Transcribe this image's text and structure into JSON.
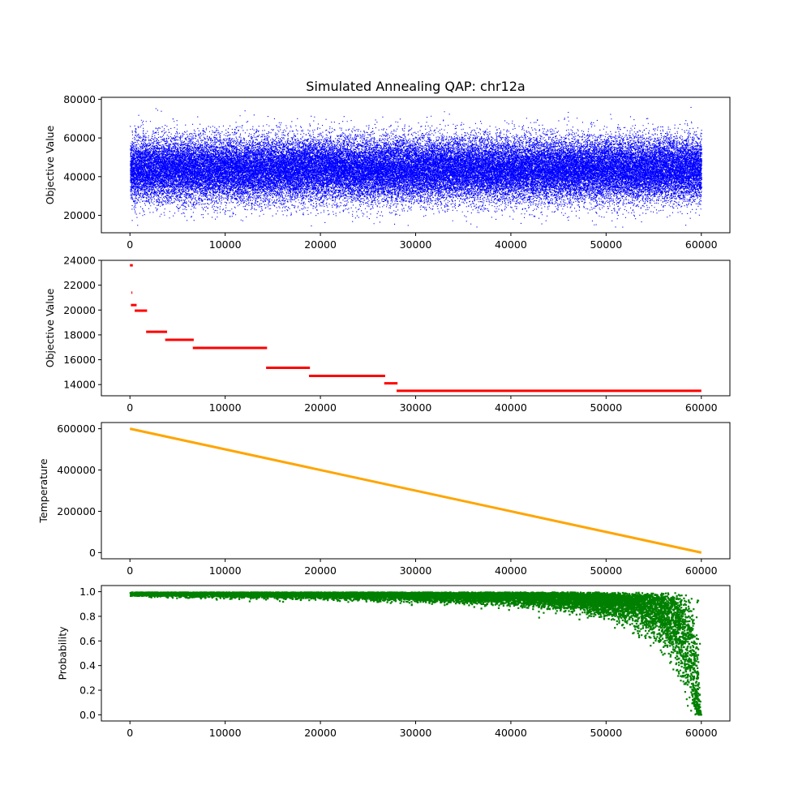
{
  "chart_data": [
    {
      "type": "scatter",
      "title": "Simulated Annealing QAP: chr12a",
      "ylabel": "Objective Value",
      "xlabel": "",
      "xlim": [
        -3000,
        63000
      ],
      "ylim": [
        11000,
        81000
      ],
      "x_ticks": [
        0,
        10000,
        20000,
        30000,
        40000,
        50000,
        60000
      ],
      "y_ticks": [
        20000,
        40000,
        60000,
        80000
      ],
      "color": "#0000ff",
      "description_of_data": "about 60000 points, one per iteration; values spread roughly uniformly between ~20000 and ~65000 with a dense core around 35000-55000",
      "generator": {
        "n": 60000,
        "x_min": 0,
        "x_max": 60000,
        "y_center": 44000,
        "y_spread": 8000,
        "y_floor": 14000,
        "y_ceil": 77000
      }
    },
    {
      "type": "line",
      "title": "",
      "ylabel": "Objective Value",
      "xlabel": "",
      "xlim": [
        -3000,
        63000
      ],
      "ylim": [
        13100,
        24000
      ],
      "x_ticks": [
        0,
        10000,
        20000,
        30000,
        40000,
        50000,
        60000
      ],
      "y_ticks": [
        14000,
        16000,
        18000,
        20000,
        22000,
        24000
      ],
      "color": "#ff0000",
      "segments": [
        {
          "x_start": 0,
          "x_end": 300,
          "y": 23600
        },
        {
          "x_start": 150,
          "x_end": 250,
          "y": 21400
        },
        {
          "x_start": 100,
          "x_end": 700,
          "y": 20400
        },
        {
          "x_start": 500,
          "x_end": 1800,
          "y": 19950
        },
        {
          "x_start": 1700,
          "x_end": 3900,
          "y": 18250
        },
        {
          "x_start": 3700,
          "x_end": 6700,
          "y": 17600
        },
        {
          "x_start": 6600,
          "x_end": 14400,
          "y": 16950
        },
        {
          "x_start": 14300,
          "x_end": 18900,
          "y": 15350
        },
        {
          "x_start": 18800,
          "x_end": 26800,
          "y": 14700
        },
        {
          "x_start": 26700,
          "x_end": 28100,
          "y": 14100
        },
        {
          "x_start": 28000,
          "x_end": 60000,
          "y": 13500
        }
      ]
    },
    {
      "type": "line",
      "title": "",
      "ylabel": "Temperature",
      "xlabel": "",
      "xlim": [
        -3000,
        63000
      ],
      "ylim": [
        -30000,
        630000
      ],
      "x_ticks": [
        0,
        10000,
        20000,
        30000,
        40000,
        50000,
        60000
      ],
      "y_ticks": [
        0,
        200000,
        400000,
        600000
      ],
      "color": "#ffa500",
      "x": [
        0,
        60000
      ],
      "y": [
        600000,
        0
      ]
    },
    {
      "type": "scatter",
      "title": "",
      "ylabel": "Probability",
      "xlabel": "",
      "xlim": [
        -3000,
        63000
      ],
      "ylim": [
        -0.05,
        1.05
      ],
      "x_ticks": [
        0,
        10000,
        20000,
        30000,
        40000,
        50000,
        60000
      ],
      "y_ticks": [
        0.0,
        0.2,
        0.4,
        0.6,
        0.8,
        1.0
      ],
      "y_tick_labels": [
        "0.0",
        "0.2",
        "0.4",
        "0.6",
        "0.8",
        "1.0"
      ],
      "color": "#008000",
      "description_of_data": "acceptance probability near 1.0 early, spreading downward as temperature falls, reaching ~0.0 near x=60000",
      "generator": {
        "n": 14000,
        "x_min": 0,
        "x_max": 60000
      }
    }
  ]
}
